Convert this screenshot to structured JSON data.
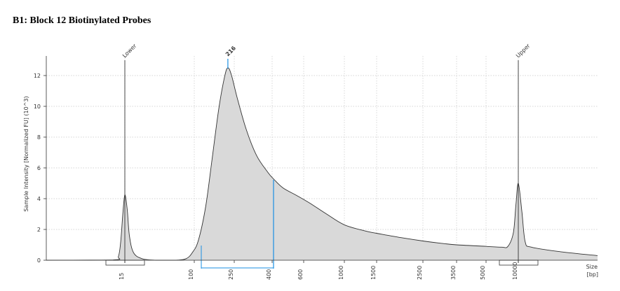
{
  "chart_data": {
    "type": "area",
    "title": "B1: Block 12 Biotinylated Probes",
    "ylabel": "Sample Intensity [Normalized FU] (10^3)",
    "xlabel": [
      "Size",
      "[bp]"
    ],
    "ylim": [
      0,
      13
    ],
    "yticks": [
      0,
      2,
      4,
      6,
      8,
      10,
      12
    ],
    "x_scale": "ladder (non-linear)",
    "x_ticks": [
      "15",
      "100",
      "250",
      "400",
      "600",
      "1000",
      "1500",
      "2500",
      "3500",
      "5000",
      "10000"
    ],
    "grid": true,
    "markers": [
      {
        "label": "Lower",
        "size_bp": 15,
        "color": "#333333"
      },
      {
        "label": "216",
        "size_bp": 216,
        "color": "#1a8fe3"
      },
      {
        "label": "Upper",
        "size_bp": 10000,
        "color": "#333333"
      }
    ],
    "region": {
      "from_bp": 100,
      "to_bp": 400,
      "color": "#1a8fe3"
    },
    "series": [
      {
        "fill": "#d9d9d9",
        "points": [
          [
            1,
            0.0
          ],
          [
            10,
            0.02
          ],
          [
            12,
            0.25
          ],
          [
            13,
            1.2
          ],
          [
            14,
            3.0
          ],
          [
            15,
            4.25
          ],
          [
            16,
            3.3
          ],
          [
            17,
            1.6
          ],
          [
            19,
            0.5
          ],
          [
            24,
            0.1
          ],
          [
            35,
            0.0
          ],
          [
            60,
            0.0
          ],
          [
            80,
            0.1
          ],
          [
            95,
            0.5
          ],
          [
            110,
            1.3
          ],
          [
            130,
            3.5
          ],
          [
            150,
            6.5
          ],
          [
            175,
            9.8
          ],
          [
            200,
            11.9
          ],
          [
            216,
            12.5
          ],
          [
            235,
            12.0
          ],
          [
            260,
            10.5
          ],
          [
            290,
            8.5
          ],
          [
            330,
            6.8
          ],
          [
            380,
            5.7
          ],
          [
            410,
            5.25
          ],
          [
            460,
            4.7
          ],
          [
            550,
            4.2
          ],
          [
            650,
            3.7
          ],
          [
            800,
            3.0
          ],
          [
            1000,
            2.3
          ],
          [
            1300,
            1.9
          ],
          [
            1500,
            1.75
          ],
          [
            2000,
            1.45
          ],
          [
            2500,
            1.25
          ],
          [
            3000,
            1.1
          ],
          [
            3500,
            1.0
          ],
          [
            5000,
            0.9
          ],
          [
            7000,
            0.85
          ],
          [
            8000,
            0.9
          ],
          [
            9000,
            1.8
          ],
          [
            9500,
            3.6
          ],
          [
            10000,
            5.0
          ],
          [
            10500,
            3.2
          ],
          [
            11000,
            1.2
          ],
          [
            12000,
            0.85
          ],
          [
            18000,
            0.55
          ],
          [
            30000,
            0.3
          ]
        ]
      }
    ]
  }
}
